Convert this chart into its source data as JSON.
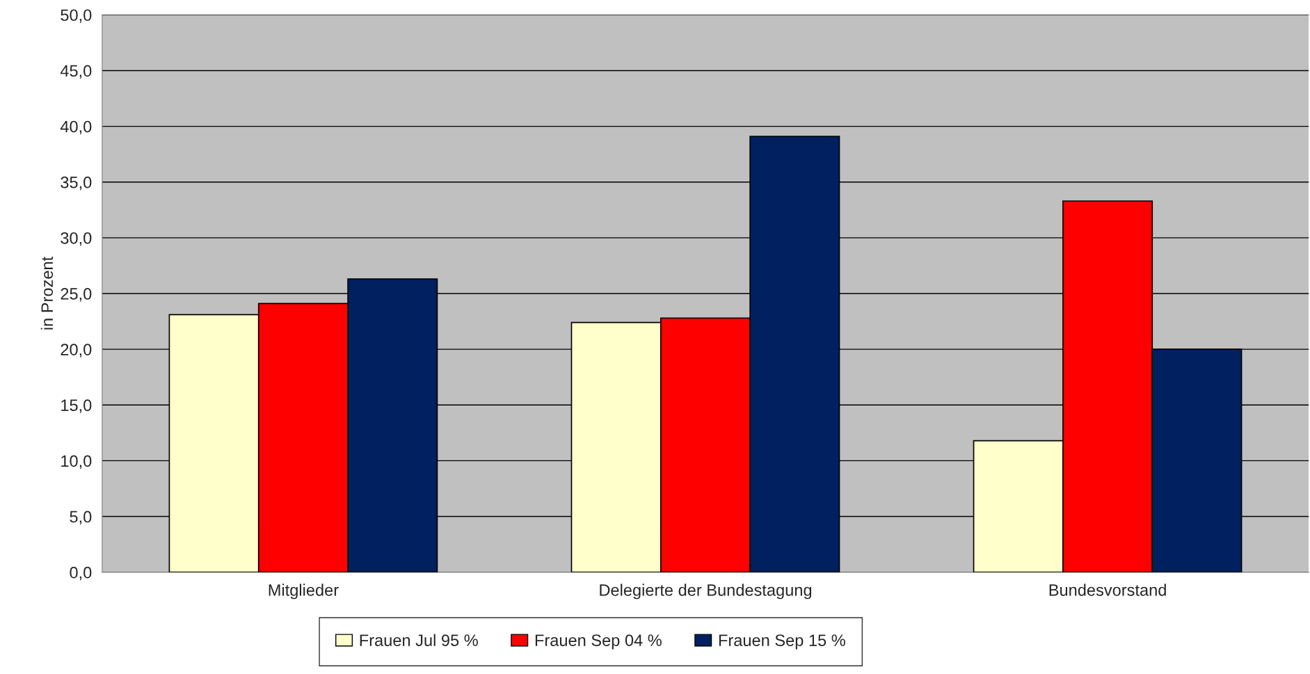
{
  "chart_data": {
    "type": "bar",
    "ylabel": "in Prozent",
    "categories": [
      "Mitglieder",
      "Delegierte der Bundestagung",
      "Bundesvorstand"
    ],
    "series": [
      {
        "name": "Frauen Jul 95 %",
        "color": "#ffffcc",
        "values": [
          23.1,
          22.4,
          11.8
        ]
      },
      {
        "name": "Frauen Sep 04 %",
        "color": "#ff0000",
        "values": [
          24.1,
          22.8,
          33.3
        ]
      },
      {
        "name": "Frauen Sep 15 %",
        "color": "#002060",
        "values": [
          26.3,
          39.1,
          20.0
        ]
      }
    ],
    "ylim": [
      0,
      50
    ],
    "yticks": [
      {
        "value": 0,
        "label": "0,0"
      },
      {
        "value": 5,
        "label": "5,0"
      },
      {
        "value": 10,
        "label": "10,0"
      },
      {
        "value": 15,
        "label": "15,0"
      },
      {
        "value": 20,
        "label": "20,0"
      },
      {
        "value": 25,
        "label": "25,0"
      },
      {
        "value": 30,
        "label": "30,0"
      },
      {
        "value": 35,
        "label": "35,0"
      },
      {
        "value": 40,
        "label": "40,0"
      },
      {
        "value": 45,
        "label": "45,0"
      },
      {
        "value": 50,
        "label": "50,0"
      }
    ],
    "grid": "y",
    "legend": "bottom"
  }
}
